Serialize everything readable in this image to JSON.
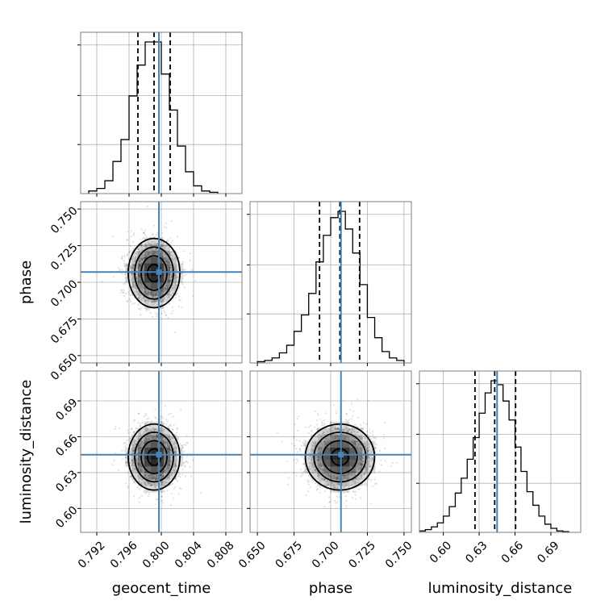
{
  "chart_data": {
    "type": "corner",
    "parameters": [
      {
        "name": "geocent_time",
        "label": "geocent_time",
        "range": [
          0.79,
          0.81
        ],
        "ticks": [
          "0.792",
          "0.796",
          "0.800",
          "0.804",
          "0.808"
        ],
        "tick_values": [
          0.792,
          0.796,
          0.8,
          0.804,
          0.808
        ],
        "truth": 0.7997,
        "quantiles": [
          0.7971,
          0.7991,
          0.8011
        ],
        "hist_bins": [
          0.7915,
          0.7925,
          0.7935,
          0.7945,
          0.7955,
          0.7965,
          0.7975,
          0.7985,
          0.7995,
          0.8005,
          0.8015,
          0.8025,
          0.8035,
          0.8045,
          0.8055,
          0.8065
        ],
        "hist_values": [
          0.02,
          0.04,
          0.1,
          0.25,
          0.42,
          0.76,
          1.0,
          1.18,
          1.18,
          0.93,
          0.65,
          0.37,
          0.17,
          0.06,
          0.02,
          0.01
        ]
      },
      {
        "name": "phase",
        "label": "phase",
        "range": [
          0.645,
          0.755
        ],
        "ticks": [
          "0.650",
          "0.675",
          "0.700",
          "0.725",
          "0.750"
        ],
        "tick_values": [
          0.65,
          0.675,
          0.7,
          0.725,
          0.75
        ],
        "truth": 0.707,
        "quantiles": [
          0.6924,
          0.7063,
          0.7197
        ],
        "hist_bins": [
          0.6525,
          0.6575,
          0.6625,
          0.6675,
          0.6725,
          0.6775,
          0.6825,
          0.6875,
          0.6925,
          0.6975,
          0.7025,
          0.7075,
          0.7125,
          0.7175,
          0.7225,
          0.7275,
          0.7325,
          0.7375,
          0.7425,
          0.7475
        ],
        "hist_values": [
          0.01,
          0.02,
          0.04,
          0.08,
          0.14,
          0.25,
          0.38,
          0.55,
          0.8,
          1.01,
          1.15,
          1.2,
          1.06,
          0.87,
          0.62,
          0.36,
          0.2,
          0.09,
          0.04,
          0.02
        ]
      },
      {
        "name": "luminosity_distance",
        "label": "luminosity_distance",
        "range": [
          0.58,
          0.715
        ],
        "ticks": [
          "0.60",
          "0.63",
          "0.66",
          "0.69"
        ],
        "tick_values": [
          0.6,
          0.63,
          0.66,
          0.69
        ],
        "truth": 0.645,
        "quantiles": [
          0.6265,
          0.643,
          0.6605
        ],
        "hist_bins": [
          0.5825,
          0.5875,
          0.5925,
          0.5975,
          0.6025,
          0.6075,
          0.6125,
          0.6175,
          0.6225,
          0.6275,
          0.6325,
          0.6375,
          0.6425,
          0.6475,
          0.6525,
          0.6575,
          0.6625,
          0.6675,
          0.6725,
          0.6775,
          0.6825,
          0.6875,
          0.6925,
          0.6975,
          0.7025
        ],
        "hist_values": [
          0.01,
          0.02,
          0.04,
          0.07,
          0.12,
          0.19,
          0.29,
          0.4,
          0.54,
          0.7,
          0.88,
          1.03,
          1.12,
          1.09,
          0.97,
          0.83,
          0.63,
          0.45,
          0.3,
          0.2,
          0.12,
          0.06,
          0.03,
          0.01,
          0.005
        ]
      }
    ],
    "panels_2d": [
      {
        "x": "geocent_time",
        "y": "phase",
        "center": [
          0.7991,
          0.7063
        ],
        "sigma": [
          0.0016,
          0.0118
        ]
      },
      {
        "x": "geocent_time",
        "y": "luminosity_distance",
        "center": [
          0.7991,
          0.643
        ],
        "sigma": [
          0.0016,
          0.0138
        ]
      },
      {
        "x": "phase",
        "y": "luminosity_distance",
        "center": [
          0.7063,
          0.643
        ],
        "sigma": [
          0.0118,
          0.0138
        ]
      }
    ],
    "contour_levels": [
      0.5,
      1.0,
      1.5,
      2.0
    ],
    "truth_color": "#4682b4",
    "grid": true
  }
}
